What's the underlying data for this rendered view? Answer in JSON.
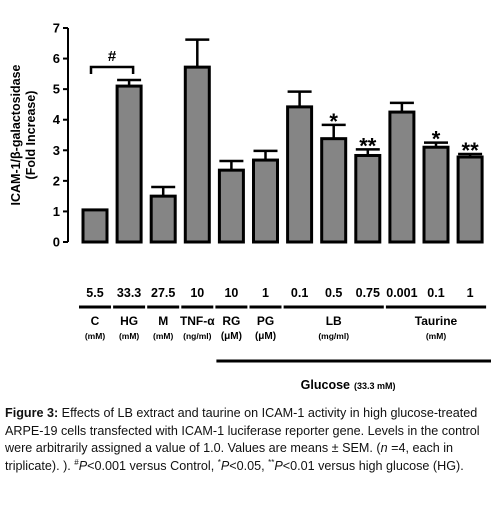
{
  "chart_data": {
    "type": "bar",
    "y_label": [
      "ICAM-1/β-galactosidase",
      "(Fold Increase)"
    ],
    "categories": [
      "5.5",
      "33.3",
      "27.5",
      "10",
      "10",
      "1",
      "0.1",
      "0.5",
      "0.75",
      "0.001",
      "0.1",
      "1"
    ],
    "values": [
      1.05,
      5.1,
      1.5,
      5.72,
      2.35,
      2.68,
      4.42,
      3.38,
      2.83,
      4.25,
      3.1,
      2.78
    ],
    "errors": [
      0,
      0.2,
      0.3,
      0.9,
      0.3,
      0.3,
      0.5,
      0.45,
      0.2,
      0.3,
      0.15,
      0.1
    ],
    "color": "#858585",
    "ylim": [
      0,
      7
    ],
    "yticks": [
      0,
      1,
      2,
      3,
      4,
      5,
      6,
      7
    ],
    "groups": [
      {
        "label": "C",
        "unit": "(mM)"
      },
      {
        "label": "HG",
        "unit": "(mM)"
      },
      {
        "label": "M",
        "unit": "(mM)"
      },
      {
        "label": "TNF-α",
        "unit": "(ng/ml)"
      },
      {
        "label": "RG",
        "unit": "(μM)"
      },
      {
        "label": "PG",
        "unit": "(μM)"
      },
      {
        "label": "LB",
        "unit": "(mg/ml)"
      },
      {
        "label": "Taurine",
        "unit": "(mM)"
      }
    ],
    "glucose": {
      "label": "Glucose",
      "unit": "(33.3 mM)"
    },
    "annotations": [
      "#",
      "*",
      "**",
      "*",
      "**"
    ]
  },
  "caption": [
    "Figure 3:",
    " Effects of LB extract and taurine on ICAM-1 activity in high glucose-treated ARPE-19 cells transfected with ICAM-1 luciferase reporter gene. Levels in the control were arbitrarily assigned a value of 1.0. Values are means ± SEM. (",
    "n",
    " =4, each in triplicate). ). ",
    "#",
    "P",
    "<0.001 versus Control, ",
    "*",
    "P",
    "<0.05, ",
    "**",
    "P",
    "<0.01 versus high glucose (HG)."
  ]
}
